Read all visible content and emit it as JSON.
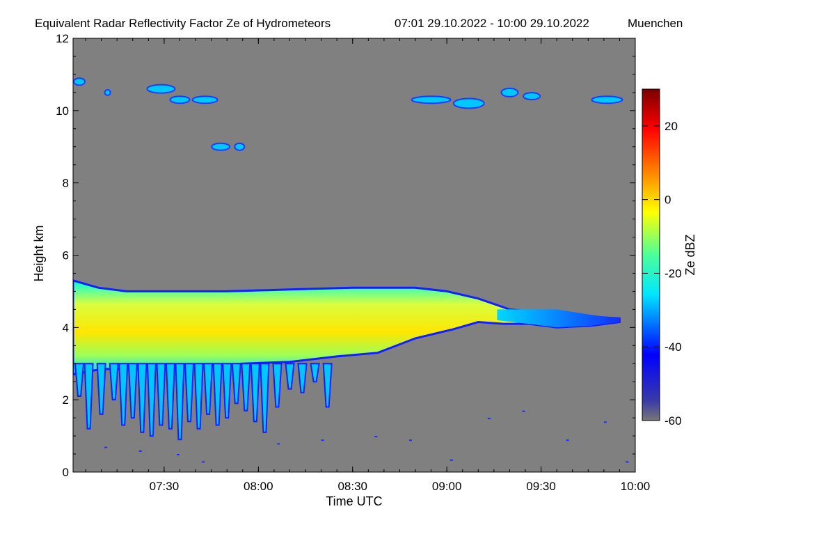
{
  "chart_data": {
    "type": "heatmap",
    "title": "Equivalent Radar Reflectivity Factor Ze of Hydrometeors",
    "time_range_label": "07:01 29.10.2022 - 10:00 29.10.2022",
    "location": "Muenchen",
    "xlabel": "Time UTC",
    "ylabel": "Height km",
    "colorbar_label": "Ze dBZ",
    "xlim_minutes": [
      421,
      600
    ],
    "ylim": [
      0,
      12
    ],
    "x_ticks": [
      {
        "minute": 450,
        "label": "07:30"
      },
      {
        "minute": 480,
        "label": "08:00"
      },
      {
        "minute": 510,
        "label": "08:30"
      },
      {
        "minute": 540,
        "label": "09:00"
      },
      {
        "minute": 570,
        "label": "09:30"
      },
      {
        "minute": 600,
        "label": "10:00"
      }
    ],
    "y_ticks": [
      0,
      2,
      4,
      6,
      8,
      10,
      12
    ],
    "colorbar": {
      "range": [
        -60,
        30
      ],
      "ticks": [
        20,
        0,
        -20,
        -40,
        -60
      ],
      "colors": [
        "#777777",
        "#0000ff",
        "#00e5ff",
        "#ffff00",
        "#ff0000",
        "#800000"
      ]
    },
    "background_color": "#808080",
    "features": [
      {
        "name": "main stratiform layer",
        "t_start": 421,
        "t_end": 595,
        "top_km": 5.0,
        "base_km": 3.0,
        "max_dbz": 0
      },
      {
        "name": "fall streaks",
        "t_start": 421,
        "t_end": 505,
        "lowest_km": 1.0
      },
      {
        "name": "cirrus",
        "t_start": 421,
        "t_end": 440,
        "height_km": 10.8
      },
      {
        "name": "cirrus",
        "t_start": 443,
        "t_end": 468,
        "height_km": 10.4
      },
      {
        "name": "cirrus",
        "t_start": 461,
        "t_end": 477,
        "height_km": 9.0
      },
      {
        "name": "cirrus",
        "t_start": 527,
        "t_end": 600,
        "height_km": 10.4
      }
    ]
  }
}
